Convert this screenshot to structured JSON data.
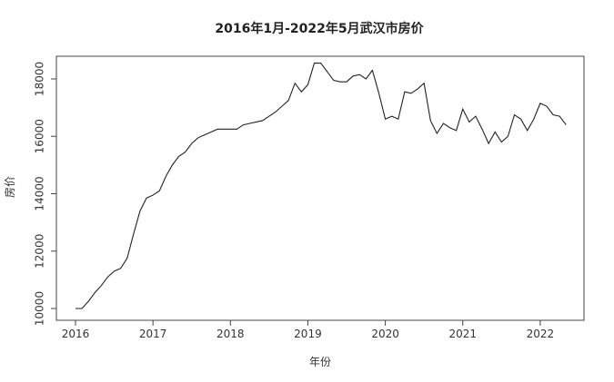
{
  "chart_data": {
    "type": "line",
    "title": "2016年1月-2022年5月武汉市房价",
    "xlabel": "年份",
    "ylabel": "房价",
    "xlim": [
      2016,
      2022.33
    ],
    "ylim": [
      10000,
      18600
    ],
    "x_ticks": [
      "2016",
      "2017",
      "2018",
      "2019",
      "2020",
      "2021",
      "2022"
    ],
    "y_ticks": [
      "10000",
      "12000",
      "14000",
      "16000",
      "18000"
    ],
    "grid": false,
    "line_color": "#222222",
    "series": [
      {
        "x": [
          "2016-01",
          "2016-02",
          "2016-03",
          "2016-04",
          "2016-05",
          "2016-06",
          "2016-07",
          "2016-08",
          "2016-09",
          "2016-10",
          "2016-11",
          "2016-12",
          "2017-01",
          "2017-02",
          "2017-03",
          "2017-04",
          "2017-05",
          "2017-06",
          "2017-07",
          "2017-08",
          "2017-09",
          "2017-10",
          "2017-11",
          "2017-12",
          "2018-01",
          "2018-02",
          "2018-03",
          "2018-04",
          "2018-05",
          "2018-06",
          "2018-07",
          "2018-08",
          "2018-09",
          "2018-10",
          "2018-11",
          "2018-12",
          "2019-01",
          "2019-02",
          "2019-03",
          "2019-04",
          "2019-05",
          "2019-06",
          "2019-07",
          "2019-08",
          "2019-09",
          "2019-10",
          "2019-11",
          "2019-12",
          "2020-01",
          "2020-02",
          "2020-03",
          "2020-04",
          "2020-05",
          "2020-06",
          "2020-07",
          "2020-08",
          "2020-09",
          "2020-10",
          "2020-11",
          "2020-12",
          "2021-01",
          "2021-02",
          "2021-03",
          "2021-04",
          "2021-05",
          "2021-06",
          "2021-07",
          "2021-08",
          "2021-09",
          "2021-10",
          "2021-11",
          "2021-12",
          "2022-01",
          "2022-02",
          "2022-03",
          "2022-04",
          "2022-05"
        ],
        "values": [
          10000,
          10000,
          10250,
          10550,
          10800,
          11100,
          11300,
          11400,
          11750,
          12600,
          13400,
          13850,
          13950,
          14100,
          14600,
          15000,
          15300,
          15450,
          15750,
          15950,
          16050,
          16150,
          16250,
          16250,
          16250,
          16250,
          16400,
          16450,
          16500,
          16550,
          16700,
          16850,
          17050,
          17250,
          17850,
          17550,
          17800,
          18550,
          18550,
          18250,
          17950,
          17900,
          17900,
          18100,
          18150,
          18000,
          18300,
          17500,
          16600,
          16700,
          16600,
          17550,
          17500,
          17650,
          17850,
          16550,
          16100,
          16450,
          16300,
          16200,
          16950,
          16500,
          16700,
          16250,
          15750,
          16150,
          15800,
          16000,
          16750,
          16600,
          16200,
          16600,
          17150,
          17050,
          16750,
          16700,
          16400
        ]
      }
    ]
  }
}
